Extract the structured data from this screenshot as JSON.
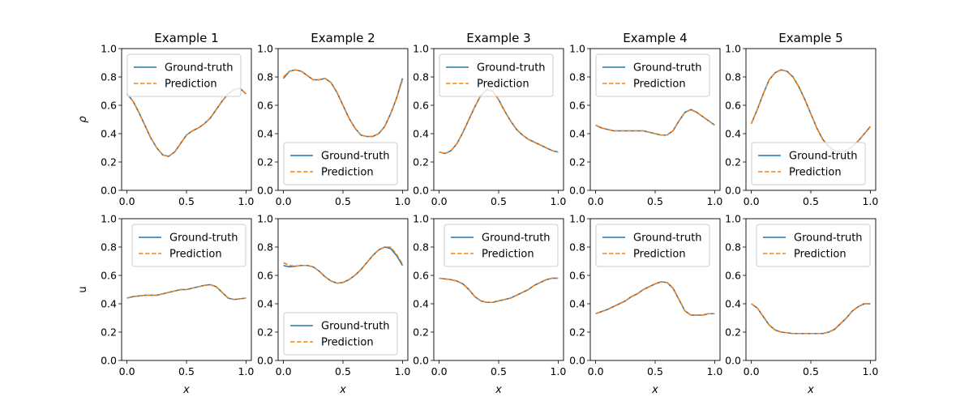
{
  "chart_data": {
    "type": "line",
    "ylim": [
      0,
      1
    ],
    "xlim": [
      0,
      1
    ],
    "x_ticks": [
      0.0,
      0.5,
      1.0
    ],
    "y_ticks": [
      0.0,
      0.2,
      0.4,
      0.6,
      0.8,
      1.0
    ],
    "x_tick_labels": [
      "0.0",
      "0.5",
      "1.0"
    ],
    "y_tick_labels": [
      "0.0",
      "0.2",
      "0.4",
      "0.6",
      "0.8",
      "1.0"
    ],
    "xlabel": "x",
    "row_ylabels": [
      "ρ",
      "u"
    ],
    "column_titles": [
      "Example 1",
      "Example 2",
      "Example 3",
      "Example 4",
      "Example 5"
    ],
    "series_names": [
      "Ground-truth",
      "Prediction"
    ],
    "series_colors": [
      "#1f77b4",
      "#ff7f0e"
    ],
    "grid": false,
    "panels": [
      {
        "row": 0,
        "col": 0,
        "legend": "top-left",
        "x": [
          0,
          0.05,
          0.1,
          0.15,
          0.2,
          0.25,
          0.3,
          0.35,
          0.4,
          0.45,
          0.5,
          0.55,
          0.6,
          0.65,
          0.7,
          0.75,
          0.8,
          0.85,
          0.9,
          0.95,
          1.0
        ],
        "ground_truth": [
          0.68,
          0.63,
          0.55,
          0.46,
          0.37,
          0.3,
          0.25,
          0.24,
          0.27,
          0.33,
          0.39,
          0.42,
          0.44,
          0.47,
          0.51,
          0.57,
          0.63,
          0.68,
          0.71,
          0.72,
          0.68
        ],
        "prediction": [
          0.68,
          0.63,
          0.55,
          0.46,
          0.37,
          0.3,
          0.25,
          0.24,
          0.27,
          0.33,
          0.39,
          0.42,
          0.44,
          0.47,
          0.51,
          0.57,
          0.63,
          0.68,
          0.71,
          0.72,
          0.68
        ]
      },
      {
        "row": 0,
        "col": 1,
        "legend": "bottom-left",
        "x": [
          0,
          0.05,
          0.1,
          0.15,
          0.2,
          0.25,
          0.3,
          0.35,
          0.4,
          0.45,
          0.5,
          0.55,
          0.6,
          0.65,
          0.7,
          0.75,
          0.8,
          0.85,
          0.9,
          0.95,
          1.0
        ],
        "ground_truth": [
          0.79,
          0.84,
          0.85,
          0.84,
          0.81,
          0.78,
          0.78,
          0.79,
          0.76,
          0.69,
          0.6,
          0.51,
          0.44,
          0.39,
          0.38,
          0.38,
          0.4,
          0.45,
          0.54,
          0.65,
          0.79
        ],
        "prediction": [
          0.8,
          0.84,
          0.85,
          0.84,
          0.81,
          0.78,
          0.78,
          0.79,
          0.76,
          0.69,
          0.6,
          0.51,
          0.44,
          0.39,
          0.38,
          0.38,
          0.4,
          0.45,
          0.54,
          0.65,
          0.78
        ]
      },
      {
        "row": 0,
        "col": 2,
        "legend": "top-left",
        "x": [
          0,
          0.05,
          0.1,
          0.15,
          0.2,
          0.25,
          0.3,
          0.35,
          0.4,
          0.45,
          0.5,
          0.55,
          0.6,
          0.65,
          0.7,
          0.75,
          0.8,
          0.85,
          0.9,
          0.95,
          1.0
        ],
        "ground_truth": [
          0.27,
          0.26,
          0.28,
          0.33,
          0.41,
          0.5,
          0.59,
          0.67,
          0.71,
          0.7,
          0.64,
          0.56,
          0.49,
          0.43,
          0.39,
          0.36,
          0.34,
          0.32,
          0.3,
          0.28,
          0.27
        ],
        "prediction": [
          0.27,
          0.26,
          0.28,
          0.33,
          0.41,
          0.5,
          0.59,
          0.67,
          0.71,
          0.7,
          0.64,
          0.56,
          0.49,
          0.43,
          0.39,
          0.36,
          0.34,
          0.32,
          0.3,
          0.28,
          0.27
        ]
      },
      {
        "row": 0,
        "col": 3,
        "legend": "top-left",
        "x": [
          0,
          0.05,
          0.1,
          0.15,
          0.2,
          0.25,
          0.3,
          0.35,
          0.4,
          0.45,
          0.5,
          0.55,
          0.6,
          0.65,
          0.7,
          0.75,
          0.8,
          0.85,
          0.9,
          0.95,
          1.0
        ],
        "ground_truth": [
          0.46,
          0.44,
          0.43,
          0.42,
          0.42,
          0.42,
          0.42,
          0.42,
          0.42,
          0.41,
          0.4,
          0.39,
          0.39,
          0.42,
          0.49,
          0.55,
          0.57,
          0.55,
          0.52,
          0.49,
          0.46
        ],
        "prediction": [
          0.46,
          0.44,
          0.43,
          0.42,
          0.42,
          0.42,
          0.42,
          0.42,
          0.42,
          0.41,
          0.4,
          0.39,
          0.39,
          0.42,
          0.49,
          0.55,
          0.57,
          0.55,
          0.52,
          0.49,
          0.46
        ]
      },
      {
        "row": 0,
        "col": 4,
        "legend": "bottom-left",
        "x": [
          0,
          0.05,
          0.1,
          0.15,
          0.2,
          0.25,
          0.3,
          0.35,
          0.4,
          0.45,
          0.5,
          0.55,
          0.6,
          0.65,
          0.7,
          0.75,
          0.8,
          0.85,
          0.9,
          0.95,
          1.0
        ],
        "ground_truth": [
          0.47,
          0.57,
          0.68,
          0.78,
          0.83,
          0.85,
          0.84,
          0.8,
          0.73,
          0.64,
          0.54,
          0.44,
          0.36,
          0.31,
          0.28,
          0.27,
          0.28,
          0.31,
          0.35,
          0.4,
          0.45
        ],
        "prediction": [
          0.47,
          0.57,
          0.68,
          0.78,
          0.83,
          0.85,
          0.84,
          0.8,
          0.73,
          0.64,
          0.54,
          0.44,
          0.36,
          0.31,
          0.28,
          0.27,
          0.28,
          0.31,
          0.35,
          0.4,
          0.45
        ]
      },
      {
        "row": 1,
        "col": 0,
        "legend": "top-right",
        "x": [
          0,
          0.05,
          0.1,
          0.15,
          0.2,
          0.25,
          0.3,
          0.35,
          0.4,
          0.45,
          0.5,
          0.55,
          0.6,
          0.65,
          0.7,
          0.75,
          0.8,
          0.85,
          0.9,
          0.95,
          1.0
        ],
        "ground_truth": [
          0.44,
          0.45,
          0.455,
          0.46,
          0.46,
          0.46,
          0.47,
          0.48,
          0.49,
          0.5,
          0.5,
          0.51,
          0.52,
          0.53,
          0.535,
          0.52,
          0.48,
          0.44,
          0.43,
          0.435,
          0.44
        ],
        "prediction": [
          0.44,
          0.45,
          0.455,
          0.46,
          0.46,
          0.46,
          0.47,
          0.48,
          0.49,
          0.5,
          0.5,
          0.51,
          0.52,
          0.53,
          0.535,
          0.52,
          0.48,
          0.44,
          0.43,
          0.435,
          0.44
        ]
      },
      {
        "row": 1,
        "col": 1,
        "legend": "bottom-left",
        "x": [
          0,
          0.05,
          0.1,
          0.15,
          0.2,
          0.25,
          0.3,
          0.35,
          0.4,
          0.45,
          0.5,
          0.55,
          0.6,
          0.65,
          0.7,
          0.75,
          0.8,
          0.85,
          0.9,
          0.95,
          1.0
        ],
        "ground_truth": [
          0.67,
          0.66,
          0.665,
          0.67,
          0.67,
          0.66,
          0.63,
          0.59,
          0.56,
          0.545,
          0.55,
          0.57,
          0.6,
          0.64,
          0.69,
          0.74,
          0.78,
          0.8,
          0.79,
          0.74,
          0.67
        ],
        "prediction": [
          0.69,
          0.67,
          0.665,
          0.67,
          0.67,
          0.66,
          0.63,
          0.59,
          0.56,
          0.545,
          0.55,
          0.57,
          0.6,
          0.64,
          0.69,
          0.74,
          0.78,
          0.8,
          0.8,
          0.75,
          0.68
        ]
      },
      {
        "row": 1,
        "col": 2,
        "legend": "top-right",
        "x": [
          0,
          0.05,
          0.1,
          0.15,
          0.2,
          0.25,
          0.3,
          0.35,
          0.4,
          0.45,
          0.5,
          0.55,
          0.6,
          0.65,
          0.7,
          0.75,
          0.8,
          0.85,
          0.9,
          0.95,
          1.0
        ],
        "ground_truth": [
          0.58,
          0.575,
          0.57,
          0.56,
          0.54,
          0.5,
          0.45,
          0.42,
          0.41,
          0.41,
          0.42,
          0.43,
          0.44,
          0.46,
          0.48,
          0.5,
          0.53,
          0.55,
          0.57,
          0.58,
          0.58
        ],
        "prediction": [
          0.58,
          0.575,
          0.57,
          0.56,
          0.54,
          0.5,
          0.45,
          0.42,
          0.41,
          0.41,
          0.42,
          0.43,
          0.44,
          0.46,
          0.48,
          0.5,
          0.53,
          0.55,
          0.57,
          0.58,
          0.58
        ]
      },
      {
        "row": 1,
        "col": 3,
        "legend": "top-left",
        "x": [
          0,
          0.05,
          0.1,
          0.15,
          0.2,
          0.25,
          0.3,
          0.35,
          0.4,
          0.45,
          0.5,
          0.55,
          0.6,
          0.65,
          0.7,
          0.75,
          0.8,
          0.85,
          0.9,
          0.95,
          1.0
        ],
        "ground_truth": [
          0.33,
          0.345,
          0.36,
          0.38,
          0.4,
          0.42,
          0.45,
          0.47,
          0.5,
          0.52,
          0.54,
          0.555,
          0.55,
          0.51,
          0.43,
          0.35,
          0.32,
          0.32,
          0.32,
          0.33,
          0.33
        ],
        "prediction": [
          0.33,
          0.345,
          0.36,
          0.38,
          0.4,
          0.42,
          0.45,
          0.47,
          0.5,
          0.52,
          0.54,
          0.555,
          0.55,
          0.51,
          0.43,
          0.35,
          0.32,
          0.32,
          0.32,
          0.33,
          0.33
        ]
      },
      {
        "row": 1,
        "col": 4,
        "legend": "top-right",
        "x": [
          0,
          0.05,
          0.1,
          0.15,
          0.2,
          0.25,
          0.3,
          0.35,
          0.4,
          0.45,
          0.5,
          0.55,
          0.6,
          0.65,
          0.7,
          0.75,
          0.8,
          0.85,
          0.9,
          0.95,
          1.0
        ],
        "ground_truth": [
          0.4,
          0.37,
          0.31,
          0.25,
          0.215,
          0.2,
          0.195,
          0.19,
          0.19,
          0.19,
          0.19,
          0.19,
          0.19,
          0.2,
          0.22,
          0.26,
          0.3,
          0.35,
          0.38,
          0.4,
          0.4
        ],
        "prediction": [
          0.4,
          0.37,
          0.31,
          0.25,
          0.215,
          0.2,
          0.195,
          0.19,
          0.19,
          0.19,
          0.19,
          0.19,
          0.19,
          0.2,
          0.22,
          0.26,
          0.3,
          0.35,
          0.38,
          0.4,
          0.4
        ]
      }
    ]
  }
}
